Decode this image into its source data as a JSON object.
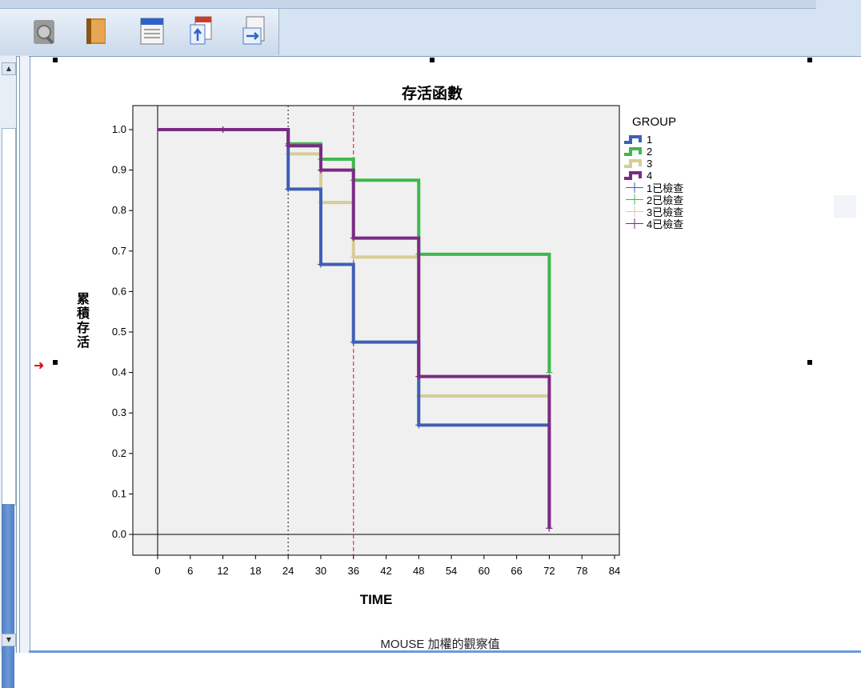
{
  "toolbar": {
    "buttons": [
      {
        "icon": "zoom-icon",
        "name": "zoom"
      },
      {
        "icon": "book-icon",
        "name": "book"
      },
      {
        "icon": "list-icon",
        "name": "list"
      },
      {
        "icon": "document-up-icon",
        "name": "doc-up"
      },
      {
        "icon": "document-arrow-icon",
        "name": "doc-arrow"
      }
    ]
  },
  "chart_data": {
    "type": "line",
    "title": "存活函數",
    "xlabel": "TIME",
    "ylabel": "累積存活",
    "footer": "MOUSE 加權的觀察值",
    "xlim": [
      0,
      84
    ],
    "ylim": [
      0.0,
      1.0
    ],
    "x_ticks": [
      "0",
      "6",
      "12",
      "18",
      "24",
      "30",
      "36",
      "42",
      "48",
      "54",
      "60",
      "66",
      "72",
      "78",
      "84"
    ],
    "y_ticks": [
      "0.0",
      "0.1",
      "0.2",
      "0.3",
      "0.4",
      "0.5",
      "0.6",
      "0.7",
      "0.8",
      "0.9",
      "1.0"
    ],
    "legend_title": "GROUP",
    "legend_placement": "right",
    "reference_lines": [
      {
        "x": 24,
        "color": "#444444",
        "style": "dotted"
      },
      {
        "x": 36,
        "color": "#e04040",
        "style": "dashed"
      }
    ],
    "series": [
      {
        "name": "1",
        "color": "#3f5fb5",
        "steps": [
          [
            0,
            1.0
          ],
          [
            24,
            0.853
          ],
          [
            30,
            0.667
          ],
          [
            36,
            0.475
          ],
          [
            48,
            0.27
          ],
          [
            72,
            0.015
          ]
        ],
        "censored": [
          [
            12,
            1.0
          ],
          [
            24,
            0.853
          ],
          [
            30,
            0.667
          ],
          [
            36,
            0.475
          ],
          [
            48,
            0.27
          ],
          [
            72,
            0.015
          ]
        ]
      },
      {
        "name": "2",
        "color": "#3fb84e",
        "steps": [
          [
            0,
            1.0
          ],
          [
            24,
            0.965
          ],
          [
            30,
            0.927
          ],
          [
            36,
            0.875
          ],
          [
            48,
            0.692
          ],
          [
            72,
            0.4
          ]
        ],
        "censored": [
          [
            12,
            1.0
          ],
          [
            24,
            0.965
          ],
          [
            30,
            0.927
          ],
          [
            36,
            0.875
          ],
          [
            48,
            0.692
          ],
          [
            72,
            0.4
          ]
        ]
      },
      {
        "name": "3",
        "color": "#d8cc98",
        "steps": [
          [
            0,
            1.0
          ],
          [
            24,
            0.94
          ],
          [
            30,
            0.82
          ],
          [
            36,
            0.685
          ],
          [
            48,
            0.342
          ],
          [
            72,
            0.015
          ]
        ],
        "censored": [
          [
            12,
            1.0
          ],
          [
            24,
            0.94
          ],
          [
            30,
            0.82
          ],
          [
            36,
            0.685
          ],
          [
            48,
            0.342
          ],
          [
            72,
            0.015
          ]
        ]
      },
      {
        "name": "4",
        "color": "#7b2a84",
        "steps": [
          [
            0,
            1.0
          ],
          [
            24,
            0.96
          ],
          [
            30,
            0.9
          ],
          [
            36,
            0.732
          ],
          [
            48,
            0.39
          ],
          [
            72,
            0.015
          ]
        ],
        "censored": [
          [
            12,
            1.0
          ],
          [
            24,
            0.96
          ],
          [
            30,
            0.9
          ],
          [
            36,
            0.732
          ],
          [
            48,
            0.39
          ],
          [
            72,
            0.015
          ]
        ]
      }
    ],
    "censored_labels": [
      "1已檢查",
      "2已檢查",
      "3已檢查",
      "4已檢查"
    ]
  }
}
